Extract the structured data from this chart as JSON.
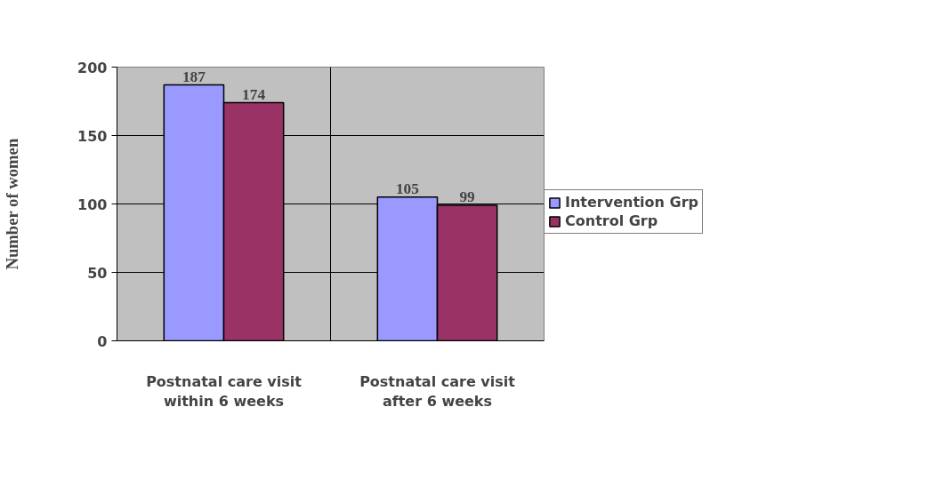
{
  "chart_data": {
    "type": "bar",
    "ylabel": "Number of women",
    "categories": [
      "Postnatal care visit within 6 weeks",
      "Postnatal care visit after 6 weeks"
    ],
    "series": [
      {
        "name": "Intervention Grp",
        "color": "#9999ff",
        "values": [
          187,
          105
        ]
      },
      {
        "name": "Control Grp",
        "color": "#993366",
        "values": [
          174,
          99
        ]
      }
    ],
    "ylim": [
      0,
      200
    ],
    "yticks": [
      0,
      50,
      100,
      150,
      200
    ],
    "grid": "y",
    "legend": "right",
    "data_labels": true
  }
}
